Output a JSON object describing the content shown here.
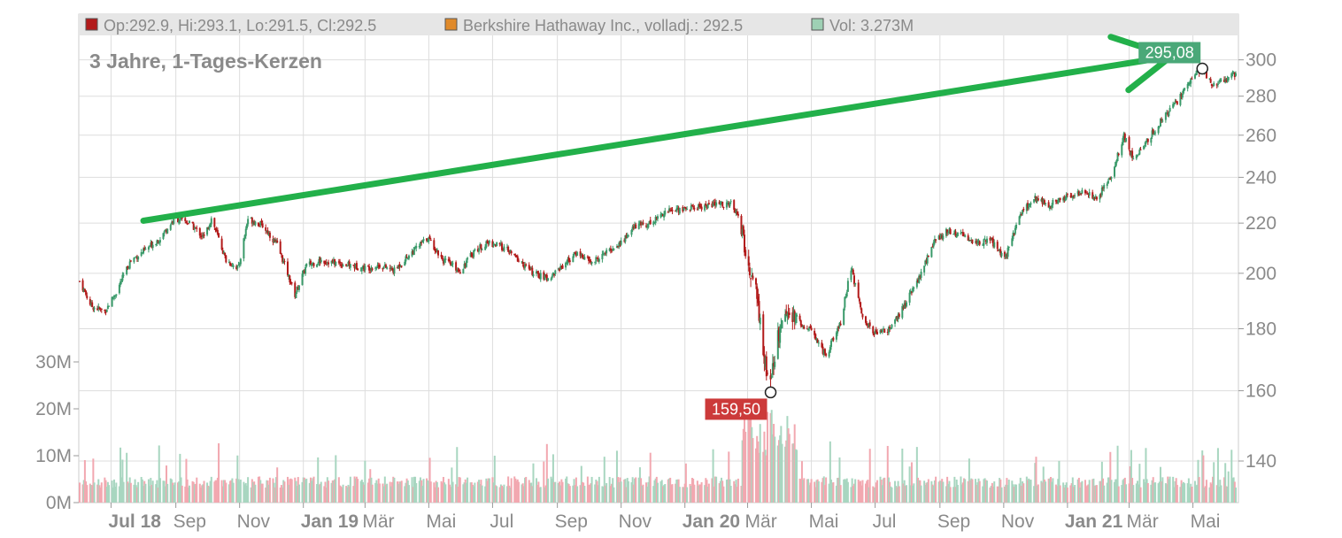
{
  "legend": [
    {
      "label": "Op:292.9, Hi:293.1, Lo:291.5, Cl:292.5",
      "color": "#b21a1a"
    },
    {
      "label": "Berkshire Hathaway Inc., volladj.: 292.5",
      "color": "#e08a2a"
    },
    {
      "label": "Vol: 3.273M",
      "color": "#9ed0b4"
    }
  ],
  "subtitle": "3 Jahre, 1-Tages-Kerzen",
  "colors": {
    "up": "#3a9a6a",
    "down": "#b21a1a",
    "vol_up": "#a8d6c0",
    "vol_down": "#f2a8b0",
    "arrow": "#22b04a",
    "max_label_bg": "#4aa878",
    "min_label_bg": "#cc3a3a"
  },
  "chart_data": {
    "type": "candlestick",
    "x_tick_labels": [
      {
        "label": "Jul 18",
        "date": "2018-07",
        "bold": true
      },
      {
        "label": "Sep",
        "date": "2018-09",
        "bold": false
      },
      {
        "label": "Nov",
        "date": "2018-11",
        "bold": false
      },
      {
        "label": "Jan 19",
        "date": "2019-01",
        "bold": true
      },
      {
        "label": "Mär",
        "date": "2019-03",
        "bold": false
      },
      {
        "label": "Mai",
        "date": "2019-05",
        "bold": false
      },
      {
        "label": "Jul",
        "date": "2019-07",
        "bold": false
      },
      {
        "label": "Sep",
        "date": "2019-09",
        "bold": false
      },
      {
        "label": "Nov",
        "date": "2019-11",
        "bold": false
      },
      {
        "label": "Jan 20",
        "date": "2020-01",
        "bold": true
      },
      {
        "label": "Mär",
        "date": "2020-03",
        "bold": false
      },
      {
        "label": "Mai",
        "date": "2020-05",
        "bold": false
      },
      {
        "label": "Jul",
        "date": "2020-07",
        "bold": false
      },
      {
        "label": "Sep",
        "date": "2020-09",
        "bold": false
      },
      {
        "label": "Nov",
        "date": "2020-11",
        "bold": false
      },
      {
        "label": "Jan 21",
        "date": "2021-01",
        "bold": true
      },
      {
        "label": "Mär",
        "date": "2021-03",
        "bold": false
      },
      {
        "label": "Mai",
        "date": "2021-05",
        "bold": false
      }
    ],
    "price_ticks": [
      "140",
      "160",
      "180",
      "200",
      "220",
      "240",
      "260",
      "280",
      "300"
    ],
    "price_range": [
      132,
      308
    ],
    "price_scale": "log",
    "volume_ticks": [
      "0M",
      "10M",
      "20M",
      "30M"
    ],
    "volume_range_millions": [
      0,
      40
    ],
    "price_path": [
      [
        "2018-06-01",
        197
      ],
      [
        "2018-06-12",
        188
      ],
      [
        "2018-06-25",
        186
      ],
      [
        "2018-07-06",
        193
      ],
      [
        "2018-07-20",
        205
      ],
      [
        "2018-08-03",
        209
      ],
      [
        "2018-08-17",
        214
      ],
      [
        "2018-08-31",
        222
      ],
      [
        "2018-09-14",
        220
      ],
      [
        "2018-09-28",
        214
      ],
      [
        "2018-10-05",
        222
      ],
      [
        "2018-10-19",
        205
      ],
      [
        "2018-10-31",
        202
      ],
      [
        "2018-11-09",
        222
      ],
      [
        "2018-11-23",
        219
      ],
      [
        "2018-12-07",
        211
      ],
      [
        "2018-12-24",
        192
      ],
      [
        "2019-01-04",
        203
      ],
      [
        "2019-01-18",
        205
      ],
      [
        "2019-02-01",
        204
      ],
      [
        "2019-02-15",
        203
      ],
      [
        "2019-03-01",
        202
      ],
      [
        "2019-03-15",
        203
      ],
      [
        "2019-03-29",
        201
      ],
      [
        "2019-04-12",
        207
      ],
      [
        "2019-04-30",
        214
      ],
      [
        "2019-05-15",
        205
      ],
      [
        "2019-05-31",
        201
      ],
      [
        "2019-06-14",
        209
      ],
      [
        "2019-06-28",
        212
      ],
      [
        "2019-07-12",
        210
      ],
      [
        "2019-07-26",
        205
      ],
      [
        "2019-08-09",
        200
      ],
      [
        "2019-08-23",
        198
      ],
      [
        "2019-09-06",
        203
      ],
      [
        "2019-09-20",
        208
      ],
      [
        "2019-10-04",
        204
      ],
      [
        "2019-10-18",
        208
      ],
      [
        "2019-11-01",
        212
      ],
      [
        "2019-11-15",
        219
      ],
      [
        "2019-11-29",
        220
      ],
      [
        "2019-12-13",
        225
      ],
      [
        "2019-12-31",
        226
      ],
      [
        "2020-01-15",
        227
      ],
      [
        "2020-02-01",
        228
      ],
      [
        "2020-02-14",
        228
      ],
      [
        "2020-02-21",
        224
      ],
      [
        "2020-02-28",
        207
      ],
      [
        "2020-03-09",
        193
      ],
      [
        "2020-03-16",
        172
      ],
      [
        "2020-03-23",
        161
      ],
      [
        "2020-03-30",
        178
      ],
      [
        "2020-04-08",
        185
      ],
      [
        "2020-04-20",
        182
      ],
      [
        "2020-05-01",
        179
      ],
      [
        "2020-05-15",
        171
      ],
      [
        "2020-05-29",
        182
      ],
      [
        "2020-06-08",
        202
      ],
      [
        "2020-06-19",
        184
      ],
      [
        "2020-07-02",
        178
      ],
      [
        "2020-07-15",
        180
      ],
      [
        "2020-07-29",
        188
      ],
      [
        "2020-08-12",
        198
      ],
      [
        "2020-08-26",
        212
      ],
      [
        "2020-09-08",
        217
      ],
      [
        "2020-09-22",
        215
      ],
      [
        "2020-10-06",
        212
      ],
      [
        "2020-10-20",
        213
      ],
      [
        "2020-11-02",
        205
      ],
      [
        "2020-11-16",
        223
      ],
      [
        "2020-11-30",
        231
      ],
      [
        "2020-12-14",
        228
      ],
      [
        "2020-12-31",
        231
      ],
      [
        "2021-01-15",
        233
      ],
      [
        "2021-01-29",
        231
      ],
      [
        "2021-02-12",
        240
      ],
      [
        "2021-02-24",
        260
      ],
      [
        "2021-03-05",
        248
      ],
      [
        "2021-03-19",
        258
      ],
      [
        "2021-04-02",
        268
      ],
      [
        "2021-04-16",
        277
      ],
      [
        "2021-04-30",
        290
      ],
      [
        "2021-05-10",
        295
      ],
      [
        "2021-05-20",
        286
      ],
      [
        "2021-06-04",
        290
      ],
      [
        "2021-06-11",
        292.5
      ]
    ],
    "max_marker": {
      "date": "2021-05-10",
      "value": 295.08,
      "label": "295,08"
    },
    "min_marker": {
      "date": "2020-03-23",
      "value": 159.5,
      "label": "159,50"
    },
    "annotation": {
      "type": "arrow",
      "from": [
        "2018-08-01",
        221
      ],
      "to": [
        "2021-04-10",
        302
      ]
    },
    "last": {
      "open": 292.9,
      "high": 293.1,
      "low": 291.5,
      "close": 292.5,
      "volume_millions": 3.273
    }
  }
}
